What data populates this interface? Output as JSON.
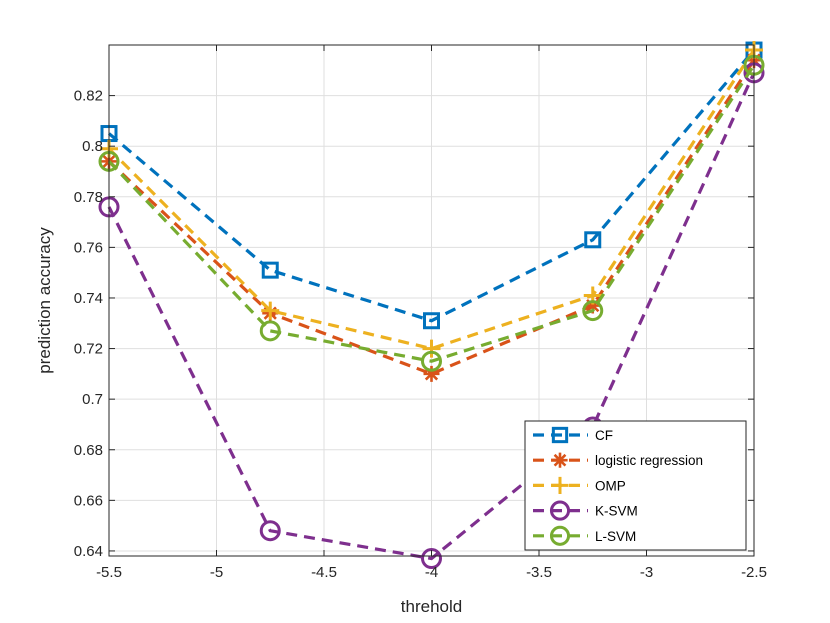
{
  "chart_data": {
    "type": "line",
    "title": "",
    "xlabel": "threhold",
    "ylabel": "prediction accuracy",
    "xlim": [
      -5.5,
      -2.5
    ],
    "ylim": [
      0.638,
      0.84
    ],
    "grid": true,
    "legend_position": "bottom-right",
    "x": [
      -5.5,
      -4.75,
      -4,
      -3.25,
      -2.5
    ],
    "xticks": [
      -5.5,
      -5,
      -4.5,
      -4,
      -3.5,
      -3,
      -2.5
    ],
    "xtick_labels": [
      "-5.5",
      "-5",
      "-4.5",
      "-4",
      "-3.5",
      "-3",
      "-2.5"
    ],
    "yticks": [
      0.64,
      0.66,
      0.68,
      0.7,
      0.72,
      0.74,
      0.76,
      0.78,
      0.8,
      0.82
    ],
    "ytick_labels": [
      "0.64",
      "0.66",
      "0.68",
      "0.7",
      "0.72",
      "0.74",
      "0.76",
      "0.78",
      "0.8",
      "0.82"
    ],
    "series": [
      {
        "name": "CF",
        "values": [
          0.805,
          0.751,
          0.731,
          0.763,
          0.838
        ],
        "color": "#0072BD",
        "marker": "square"
      },
      {
        "name": "logistic regression",
        "values": [
          0.794,
          0.734,
          0.71,
          0.737,
          0.834
        ],
        "color": "#D95319",
        "marker": "asterisk"
      },
      {
        "name": "OMP",
        "values": [
          0.799,
          0.735,
          0.72,
          0.741,
          0.838
        ],
        "color": "#EDB120",
        "marker": "plus"
      },
      {
        "name": "K-SVM",
        "values": [
          0.776,
          0.648,
          0.637,
          0.689,
          0.829
        ],
        "color": "#7E2F8E",
        "marker": "circle"
      },
      {
        "name": "L-SVM",
        "values": [
          0.794,
          0.727,
          0.715,
          0.735,
          0.832
        ],
        "color": "#77AC30",
        "marker": "circle"
      }
    ]
  }
}
